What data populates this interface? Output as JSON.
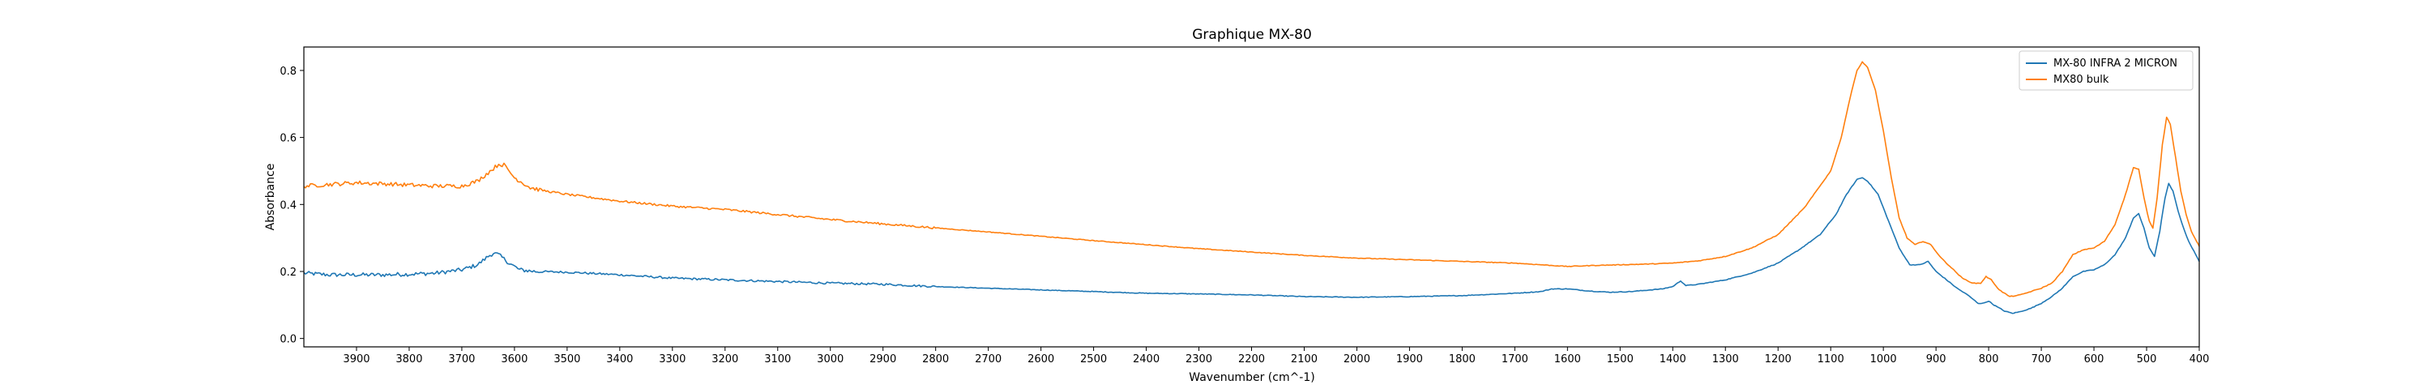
{
  "chart_data": {
    "type": "line",
    "title": "Graphique MX-80",
    "xlabel": "Wavenumber (cm^-1)",
    "ylabel": "Absorbance",
    "xlim": [
      4000,
      400
    ],
    "x_reversed": true,
    "ylim": [
      -0.025,
      0.87
    ],
    "xticks": [
      3900,
      3800,
      3700,
      3600,
      3500,
      3400,
      3300,
      3200,
      3100,
      3000,
      2900,
      2800,
      2700,
      2600,
      2500,
      2400,
      2300,
      2200,
      2100,
      2000,
      1900,
      1800,
      1700,
      1600,
      1500,
      1400,
      1300,
      1200,
      1100,
      1000,
      900,
      800,
      700,
      600,
      500,
      400
    ],
    "yticks": [
      0.0,
      0.2,
      0.4,
      0.6,
      0.8
    ],
    "ytick_labels": [
      "0.0",
      "0.2",
      "0.4",
      "0.6",
      "0.8"
    ],
    "grid": false,
    "legend_position": "top-right",
    "series": [
      {
        "name": "MX-80 INFRA 2 MICRON",
        "color": "#1f77b4",
        "points": [
          [
            4000,
            0.195
          ],
          [
            3950,
            0.19
          ],
          [
            3900,
            0.19
          ],
          [
            3850,
            0.19
          ],
          [
            3800,
            0.192
          ],
          [
            3750,
            0.195
          ],
          [
            3700,
            0.205
          ],
          [
            3670,
            0.22
          ],
          [
            3650,
            0.245
          ],
          [
            3640,
            0.255
          ],
          [
            3630,
            0.25
          ],
          [
            3610,
            0.225
          ],
          [
            3590,
            0.205
          ],
          [
            3560,
            0.2
          ],
          [
            3500,
            0.198
          ],
          [
            3400,
            0.19
          ],
          [
            3300,
            0.18
          ],
          [
            3200,
            0.175
          ],
          [
            3100,
            0.17
          ],
          [
            3000,
            0.165
          ],
          [
            2900,
            0.162
          ],
          [
            2800,
            0.155
          ],
          [
            2700,
            0.15
          ],
          [
            2600,
            0.145
          ],
          [
            2500,
            0.14
          ],
          [
            2400,
            0.135
          ],
          [
            2300,
            0.133
          ],
          [
            2200,
            0.13
          ],
          [
            2100,
            0.125
          ],
          [
            2000,
            0.123
          ],
          [
            1900,
            0.125
          ],
          [
            1800,
            0.128
          ],
          [
            1700,
            0.135
          ],
          [
            1650,
            0.14
          ],
          [
            1630,
            0.148
          ],
          [
            1600,
            0.148
          ],
          [
            1560,
            0.142
          ],
          [
            1520,
            0.138
          ],
          [
            1480,
            0.14
          ],
          [
            1420,
            0.148
          ],
          [
            1400,
            0.155
          ],
          [
            1385,
            0.172
          ],
          [
            1375,
            0.158
          ],
          [
            1350,
            0.162
          ],
          [
            1300,
            0.175
          ],
          [
            1250,
            0.195
          ],
          [
            1200,
            0.225
          ],
          [
            1160,
            0.265
          ],
          [
            1120,
            0.31
          ],
          [
            1090,
            0.37
          ],
          [
            1070,
            0.43
          ],
          [
            1050,
            0.475
          ],
          [
            1040,
            0.48
          ],
          [
            1030,
            0.47
          ],
          [
            1010,
            0.43
          ],
          [
            990,
            0.35
          ],
          [
            970,
            0.27
          ],
          [
            950,
            0.22
          ],
          [
            930,
            0.22
          ],
          [
            915,
            0.23
          ],
          [
            900,
            0.2
          ],
          [
            880,
            0.175
          ],
          [
            860,
            0.15
          ],
          [
            840,
            0.13
          ],
          [
            820,
            0.105
          ],
          [
            810,
            0.105
          ],
          [
            800,
            0.112
          ],
          [
            790,
            0.1
          ],
          [
            770,
            0.082
          ],
          [
            755,
            0.075
          ],
          [
            740,
            0.08
          ],
          [
            720,
            0.09
          ],
          [
            700,
            0.105
          ],
          [
            680,
            0.125
          ],
          [
            660,
            0.15
          ],
          [
            640,
            0.185
          ],
          [
            620,
            0.2
          ],
          [
            600,
            0.205
          ],
          [
            580,
            0.22
          ],
          [
            560,
            0.25
          ],
          [
            540,
            0.3
          ],
          [
            525,
            0.36
          ],
          [
            515,
            0.372
          ],
          [
            505,
            0.33
          ],
          [
            495,
            0.27
          ],
          [
            485,
            0.245
          ],
          [
            475,
            0.32
          ],
          [
            465,
            0.42
          ],
          [
            458,
            0.462
          ],
          [
            450,
            0.44
          ],
          [
            440,
            0.38
          ],
          [
            430,
            0.33
          ],
          [
            420,
            0.29
          ],
          [
            410,
            0.26
          ],
          [
            400,
            0.23
          ]
        ]
      },
      {
        "name": "MX80 bulk",
        "color": "#ff7f0e",
        "points": [
          [
            4000,
            0.455
          ],
          [
            3950,
            0.46
          ],
          [
            3900,
            0.465
          ],
          [
            3850,
            0.462
          ],
          [
            3800,
            0.458
          ],
          [
            3750,
            0.455
          ],
          [
            3700,
            0.455
          ],
          [
            3670,
            0.47
          ],
          [
            3650,
            0.495
          ],
          [
            3630,
            0.52
          ],
          [
            3620,
            0.518
          ],
          [
            3600,
            0.48
          ],
          [
            3570,
            0.45
          ],
          [
            3540,
            0.44
          ],
          [
            3500,
            0.43
          ],
          [
            3400,
            0.41
          ],
          [
            3300,
            0.395
          ],
          [
            3200,
            0.385
          ],
          [
            3100,
            0.37
          ],
          [
            3000,
            0.355
          ],
          [
            2900,
            0.342
          ],
          [
            2800,
            0.33
          ],
          [
            2700,
            0.318
          ],
          [
            2600,
            0.305
          ],
          [
            2500,
            0.292
          ],
          [
            2400,
            0.28
          ],
          [
            2300,
            0.268
          ],
          [
            2200,
            0.258
          ],
          [
            2100,
            0.248
          ],
          [
            2000,
            0.24
          ],
          [
            1900,
            0.235
          ],
          [
            1800,
            0.23
          ],
          [
            1700,
            0.225
          ],
          [
            1650,
            0.22
          ],
          [
            1600,
            0.215
          ],
          [
            1550,
            0.218
          ],
          [
            1500,
            0.22
          ],
          [
            1450,
            0.222
          ],
          [
            1400,
            0.225
          ],
          [
            1350,
            0.232
          ],
          [
            1300,
            0.245
          ],
          [
            1250,
            0.27
          ],
          [
            1200,
            0.31
          ],
          [
            1150,
            0.39
          ],
          [
            1100,
            0.5
          ],
          [
            1080,
            0.6
          ],
          [
            1060,
            0.74
          ],
          [
            1050,
            0.8
          ],
          [
            1040,
            0.825
          ],
          [
            1030,
            0.81
          ],
          [
            1015,
            0.74
          ],
          [
            1000,
            0.62
          ],
          [
            985,
            0.48
          ],
          [
            970,
            0.36
          ],
          [
            955,
            0.3
          ],
          [
            940,
            0.28
          ],
          [
            925,
            0.29
          ],
          [
            910,
            0.28
          ],
          [
            890,
            0.24
          ],
          [
            870,
            0.21
          ],
          [
            850,
            0.18
          ],
          [
            830,
            0.165
          ],
          [
            815,
            0.165
          ],
          [
            805,
            0.185
          ],
          [
            795,
            0.175
          ],
          [
            780,
            0.145
          ],
          [
            760,
            0.125
          ],
          [
            740,
            0.13
          ],
          [
            720,
            0.14
          ],
          [
            700,
            0.15
          ],
          [
            680,
            0.165
          ],
          [
            660,
            0.2
          ],
          [
            640,
            0.25
          ],
          [
            620,
            0.265
          ],
          [
            600,
            0.27
          ],
          [
            580,
            0.29
          ],
          [
            560,
            0.34
          ],
          [
            540,
            0.43
          ],
          [
            525,
            0.51
          ],
          [
            515,
            0.505
          ],
          [
            505,
            0.42
          ],
          [
            495,
            0.35
          ],
          [
            488,
            0.33
          ],
          [
            480,
            0.42
          ],
          [
            470,
            0.58
          ],
          [
            462,
            0.66
          ],
          [
            455,
            0.64
          ],
          [
            445,
            0.54
          ],
          [
            435,
            0.44
          ],
          [
            425,
            0.37
          ],
          [
            415,
            0.32
          ],
          [
            405,
            0.29
          ],
          [
            400,
            0.275
          ]
        ]
      }
    ]
  }
}
